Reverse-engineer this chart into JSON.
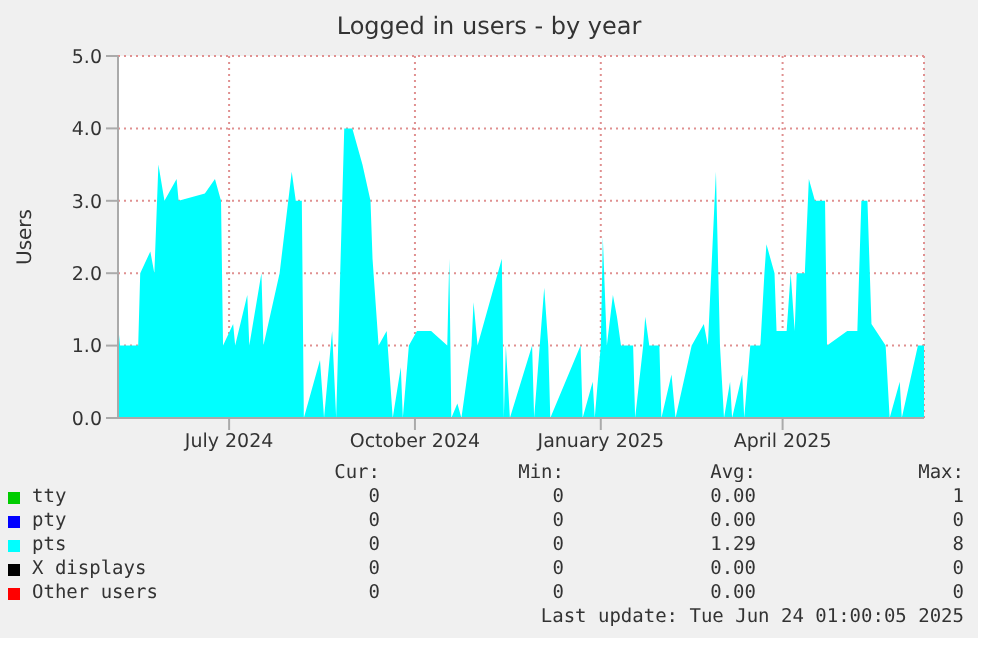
{
  "chart_data": {
    "type": "area",
    "title": "Logged in users - by year",
    "ylabel": "Users",
    "xlim": [
      "2024-05-22",
      "2025-06-25"
    ],
    "xticks": [
      {
        "value": "2024-07-16",
        "label": "July 2024"
      },
      {
        "value": "2024-10-16",
        "label": "October 2024"
      },
      {
        "value": "2025-01-16",
        "label": "January 2025"
      },
      {
        "value": "2025-04-16",
        "label": "April 2025"
      }
    ],
    "ylim": [
      0,
      5
    ],
    "yticks": [
      {
        "value": 0,
        "label": "0.0"
      },
      {
        "value": 1,
        "label": "1.0"
      },
      {
        "value": 2,
        "label": "2.0"
      },
      {
        "value": 3,
        "label": "3.0"
      },
      {
        "value": 4,
        "label": "4.0"
      },
      {
        "value": 5,
        "label": "5.0"
      }
    ],
    "grid": true,
    "legend": "bottom",
    "series": [
      {
        "name": "tty",
        "color": "#00cc00"
      },
      {
        "name": "pty",
        "color": "#0000ff"
      },
      {
        "name": "pts",
        "color": "#00ffff",
        "x": [
          "2024-05-22",
          "2024-05-23",
          "2024-06-01",
          "2024-06-02",
          "2024-06-07",
          "2024-06-09",
          "2024-06-11",
          "2024-06-14",
          "2024-06-20",
          "2024-06-21",
          "2024-07-04",
          "2024-07-09",
          "2024-07-12",
          "2024-07-13",
          "2024-07-18",
          "2024-07-19",
          "2024-07-25",
          "2024-07-26",
          "2024-08-01",
          "2024-08-02",
          "2024-08-10",
          "2024-08-16",
          "2024-08-18",
          "2024-08-21",
          "2024-08-22",
          "2024-08-30",
          "2024-09-01",
          "2024-09-05",
          "2024-09-07",
          "2024-09-11",
          "2024-09-15",
          "2024-09-20",
          "2024-09-24",
          "2024-09-25",
          "2024-09-28",
          "2024-10-02",
          "2024-10-05",
          "2024-10-09",
          "2024-10-10",
          "2024-10-13",
          "2024-10-17",
          "2024-10-24",
          "2024-11-01",
          "2024-11-02",
          "2024-11-03",
          "2024-11-06",
          "2024-11-08",
          "2024-11-13",
          "2024-11-14",
          "2024-11-16",
          "2024-11-28",
          "2024-11-29",
          "2024-11-30",
          "2024-12-02",
          "2024-12-13",
          "2024-12-14",
          "2024-12-19",
          "2024-12-21",
          "2024-12-22",
          "2025-01-06",
          "2025-01-07",
          "2025-01-12",
          "2025-01-13",
          "2025-01-16",
          "2025-01-17",
          "2025-01-19",
          "2025-01-22",
          "2025-01-24",
          "2025-01-26",
          "2025-02-01",
          "2025-02-02",
          "2025-02-06",
          "2025-02-07",
          "2025-02-09",
          "2025-02-14",
          "2025-02-15",
          "2025-02-20",
          "2025-02-22",
          "2025-03-02",
          "2025-03-08",
          "2025-03-10",
          "2025-03-14",
          "2025-03-16",
          "2025-03-18",
          "2025-03-21",
          "2025-03-22",
          "2025-03-27",
          "2025-03-28",
          "2025-03-31",
          "2025-04-05",
          "2025-04-07",
          "2025-04-08",
          "2025-04-12",
          "2025-04-13",
          "2025-04-18",
          "2025-04-20",
          "2025-04-22",
          "2025-04-23",
          "2025-04-27",
          "2025-04-29",
          "2025-05-02",
          "2025-05-07",
          "2025-05-08",
          "2025-05-18",
          "2025-05-23",
          "2025-05-25",
          "2025-05-28",
          "2025-05-30",
          "2025-06-06",
          "2025-06-08",
          "2025-06-13",
          "2025-06-14",
          "2025-06-22",
          "2025-06-25"
        ],
        "values": [
          1.3,
          1,
          1,
          2,
          2.3,
          2,
          3.5,
          3,
          3.3,
          3,
          3.1,
          3.3,
          3,
          1,
          1.3,
          1,
          1.7,
          1,
          2,
          1,
          2,
          3.4,
          3,
          3,
          0,
          0.8,
          0,
          1.2,
          0,
          4,
          4,
          3.5,
          3,
          2.2,
          1,
          1.2,
          0,
          0.7,
          0,
          1,
          1.2,
          1.2,
          1,
          2.2,
          0,
          0.2,
          0,
          1,
          1.6,
          1,
          2.2,
          0,
          1,
          0,
          1,
          0,
          1.8,
          1,
          0,
          1,
          0,
          0.5,
          0,
          1,
          2.5,
          1,
          1.7,
          1.4,
          1,
          1,
          0,
          1,
          1.4,
          1,
          1,
          0,
          0.6,
          0,
          1,
          1.3,
          1,
          3.4,
          1,
          0,
          0.5,
          0,
          0.6,
          0,
          1,
          1,
          2,
          2.4,
          2,
          1.2,
          1.2,
          2,
          1.2,
          2,
          2,
          3.3,
          3,
          3,
          1,
          1.2,
          1.2,
          3,
          3,
          1.3,
          1,
          0,
          0.5,
          0,
          1,
          1
        ]
      },
      {
        "name": "X displays",
        "color": "#000000"
      },
      {
        "name": "Other users",
        "color": "#ff0000"
      }
    ],
    "annotations": [
      "Cur:",
      "Min:",
      "Avg:",
      "Max:",
      "0",
      "0",
      "0.00",
      "1",
      "0",
      "0",
      "0.00",
      "0",
      "0",
      "0",
      "1.29",
      "8",
      "0",
      "0",
      "0.00",
      "0",
      "0",
      "0",
      "0.00",
      "0",
      "Last update: Tue Jun 24 01:00:05 2025"
    ]
  }
}
